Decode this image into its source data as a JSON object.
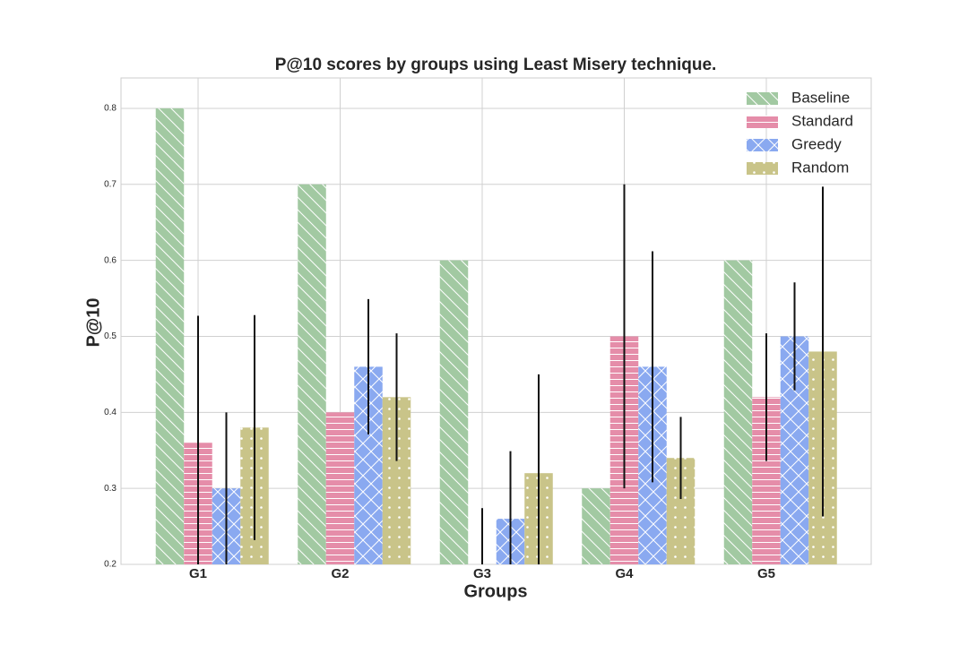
{
  "chart_data": {
    "type": "bar",
    "title": "P@10 scores by groups using Least Misery technique.",
    "xlabel": "Groups",
    "ylabel": "P@10",
    "categories": [
      "G1",
      "G2",
      "G3",
      "G4",
      "G5"
    ],
    "series": [
      {
        "name": "Baseline",
        "color": "#a2c9a2",
        "hatch": "\\",
        "values": [
          0.8,
          0.7,
          0.6,
          0.3,
          0.6
        ],
        "errors": [
          0,
          0,
          0,
          0,
          0
        ]
      },
      {
        "name": "Standard",
        "color": "#e58da9",
        "hatch": "-",
        "values": [
          0.36,
          0.4,
          0.2,
          0.5,
          0.42
        ],
        "errors": [
          0.167,
          0,
          0.074,
          0.2,
          0.084
        ]
      },
      {
        "name": "Greedy",
        "color": "#8aa9f0",
        "hatch": "x",
        "values": [
          0.3,
          0.46,
          0.26,
          0.46,
          0.5
        ],
        "errors": [
          0.1,
          0.089,
          0.089,
          0.152,
          0.071
        ]
      },
      {
        "name": "Random",
        "color": "#c9c489",
        "hatch": ".",
        "values": [
          0.38,
          0.42,
          0.32,
          0.34,
          0.48
        ],
        "errors": [
          0.148,
          0.084,
          0.13,
          0.054,
          0.217
        ]
      }
    ],
    "ylim": [
      0.2,
      0.84
    ],
    "yticks": [
      0.2,
      0.3,
      0.4,
      0.5,
      0.6,
      0.7,
      0.8
    ],
    "grid": true,
    "legend": "upper right"
  }
}
